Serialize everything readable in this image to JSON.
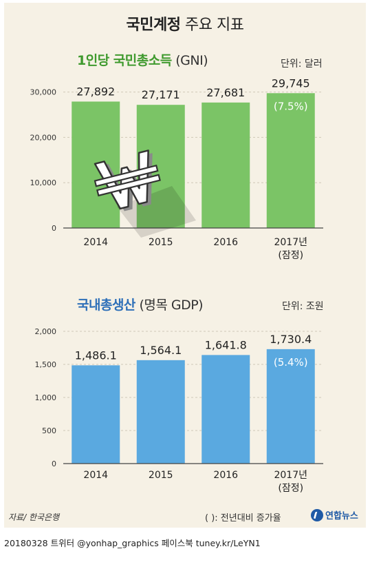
{
  "title_bold": "국민계정",
  "title_rest": " 주요 지표",
  "source": "자료/ 한국은행",
  "legend_note": "(  ): 전년대비 증가율",
  "logo_text": "연합뉴스",
  "footer": "20180328   트위터 @yonhap_graphics  페이스북 tuney.kr/LeYN1",
  "colors": {
    "gni_bar": "#7bc466",
    "gdp_bar": "#5aa9e0",
    "gni_title": "#3f9a2e",
    "gdp_title": "#2d6fb8",
    "background": "#f6f1e5"
  },
  "chart_data": [
    {
      "type": "bar",
      "title_bold": "1인당 국민총소득",
      "title_sub": " (GNI)",
      "unit": "단위: 달러",
      "categories": [
        "2014",
        "2015",
        "2016",
        "2017년"
      ],
      "category_notes": [
        "",
        "",
        "",
        "(잠정)"
      ],
      "values": [
        27892,
        27171,
        27681,
        29745
      ],
      "data_labels": [
        "27,892",
        "27,171",
        "27,681",
        "29,745"
      ],
      "growth_label": "(7.5%)",
      "yticks": [
        0,
        10000,
        20000,
        30000
      ],
      "ytick_labels": [
        "0",
        "10,000",
        "20,000",
        "30,000"
      ],
      "ylim": [
        0,
        31000
      ],
      "grid": true
    },
    {
      "type": "bar",
      "title_bold": "국내총생산",
      "title_sub": " (명목 GDP)",
      "unit": "단위: 조원",
      "categories": [
        "2014",
        "2015",
        "2016",
        "2017년"
      ],
      "category_notes": [
        "",
        "",
        "",
        "(잠정)"
      ],
      "values": [
        1486.1,
        1564.1,
        1641.8,
        1730.4
      ],
      "data_labels": [
        "1,486.1",
        "1,564.1",
        "1,641.8",
        "1,730.4"
      ],
      "growth_label": "(5.4%)",
      "yticks": [
        0,
        500,
        1000,
        1500,
        2000
      ],
      "ytick_labels": [
        "0",
        "500",
        "1,000",
        "1,500",
        "2,000"
      ],
      "ylim": [
        0,
        2000
      ],
      "grid": true
    }
  ]
}
